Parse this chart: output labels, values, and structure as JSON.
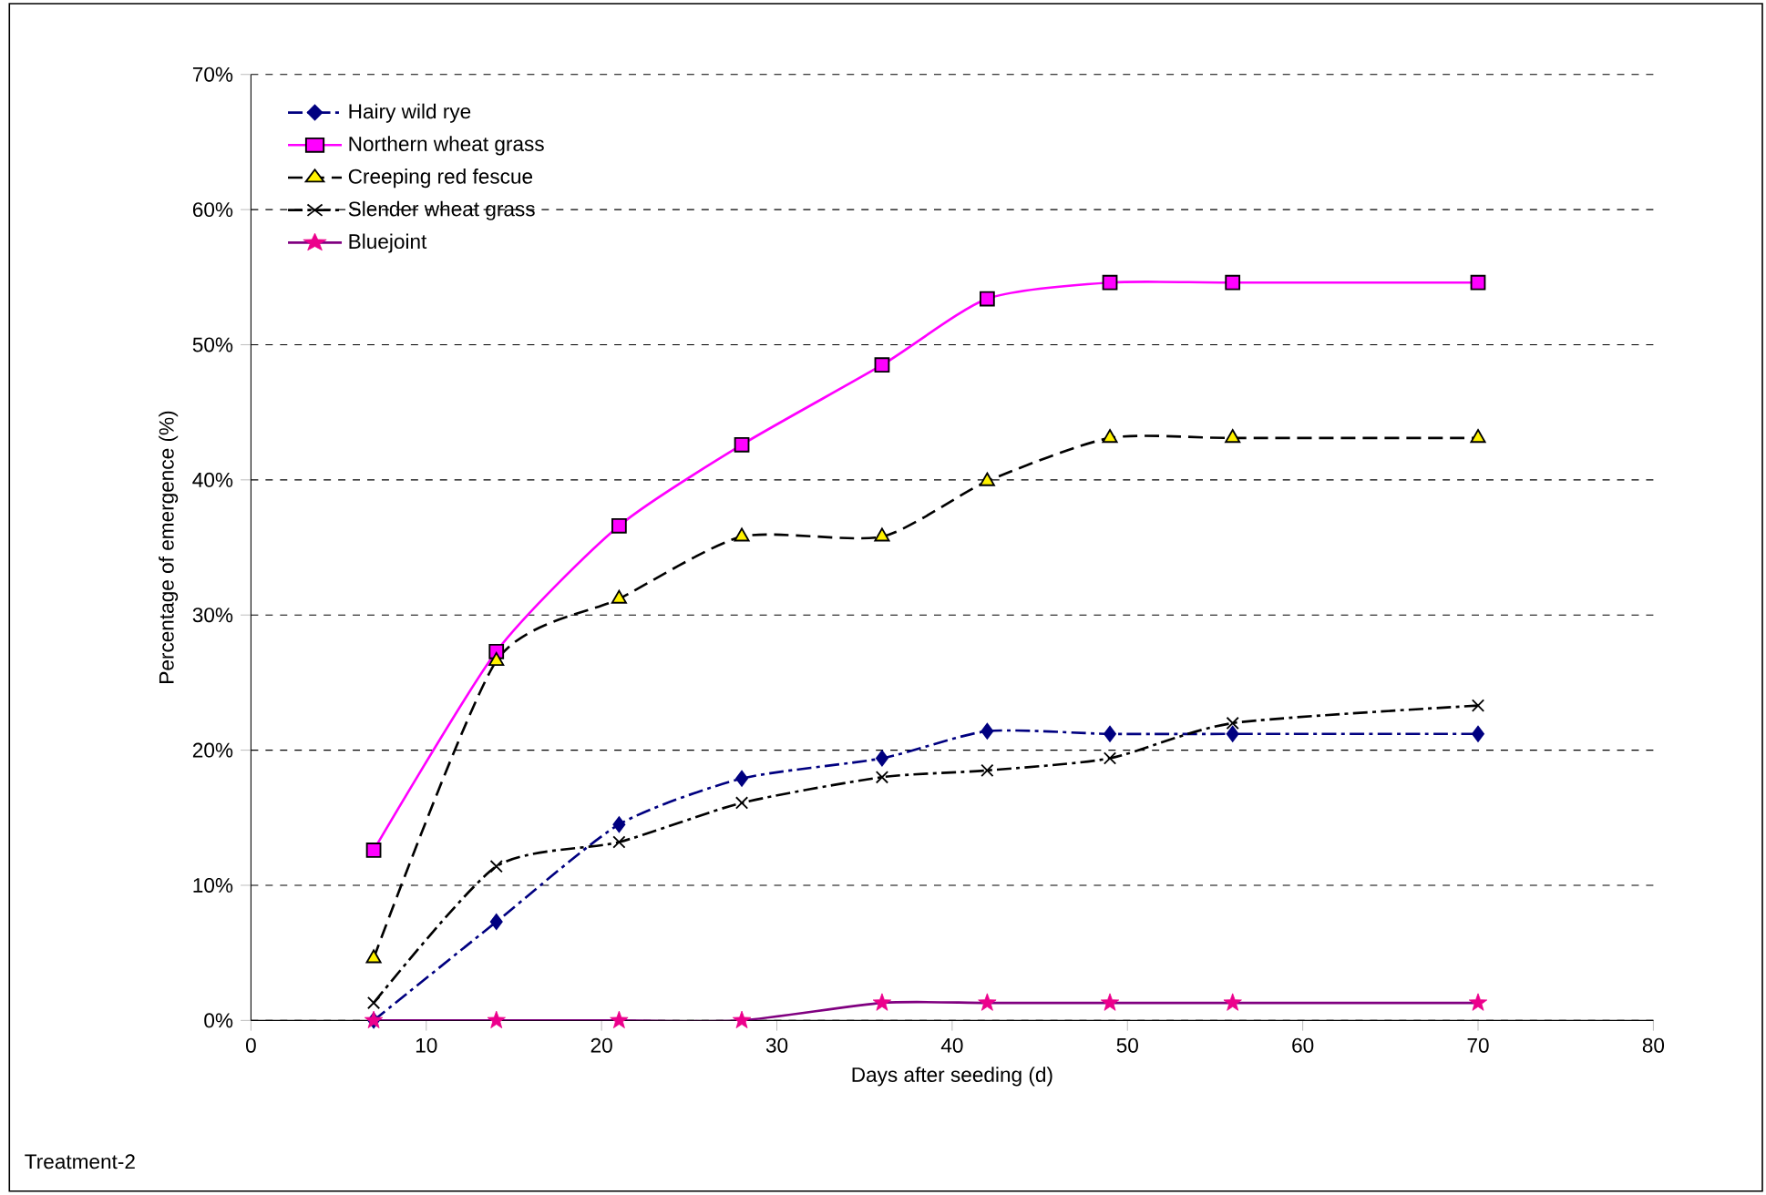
{
  "chart_data": {
    "type": "line",
    "xlabel": "Days after seeding (d)",
    "ylabel": "Percentage of emergence (%)",
    "x": [
      7,
      14,
      21,
      28,
      36,
      42,
      49,
      56,
      70
    ],
    "series": [
      {
        "name": "Hairy wild rye",
        "color": "#000080",
        "marker": "diamond",
        "line_style": "dashdotted",
        "values": [
          0,
          7.3,
          14.5,
          17.9,
          19.4,
          21.4,
          21.2,
          21.2,
          21.2
        ]
      },
      {
        "name": "Northern wheat grass",
        "color": "#ff00ff",
        "marker": "square",
        "line_style": "solid",
        "values": [
          12.6,
          27.3,
          36.6,
          42.6,
          48.5,
          53.4,
          54.6,
          54.6,
          54.6
        ]
      },
      {
        "name": "Creeping red fescue",
        "color": "#000000",
        "marker": "triangle",
        "line_style": "dashed",
        "values": [
          4.6,
          26.6,
          31.2,
          35.8,
          35.8,
          39.9,
          43.1,
          43.1,
          43.1
        ]
      },
      {
        "name": "Slender wheat grass",
        "color": "#000000",
        "marker": "cross",
        "line_style": "dashdotted",
        "values": [
          1.3,
          11.4,
          13.2,
          16.1,
          18.0,
          18.5,
          19.4,
          22.0,
          23.3
        ]
      },
      {
        "name": "Bluejoint",
        "color": "#800080",
        "marker": "star",
        "line_style": "solid",
        "values": [
          0,
          0,
          0,
          0,
          1.3,
          1.3,
          1.3,
          1.3,
          1.3
        ]
      }
    ],
    "xlim": [
      0,
      80
    ],
    "xticks": [
      0,
      10,
      20,
      30,
      40,
      50,
      60,
      70,
      80
    ],
    "ylim": [
      0,
      70
    ],
    "yticks": [
      {
        "value": 0,
        "label": "0%"
      },
      {
        "value": 10,
        "label": "10%"
      },
      {
        "value": 20,
        "label": "20%"
      },
      {
        "value": 30,
        "label": "30%"
      },
      {
        "value": 40,
        "label": "40%"
      },
      {
        "value": 50,
        "label": "50%"
      },
      {
        "value": 60,
        "label": "60%"
      },
      {
        "value": 70,
        "label": "70%"
      }
    ],
    "grid": "y",
    "legend": "top left",
    "annotations": [
      "Treatment-2"
    ]
  }
}
